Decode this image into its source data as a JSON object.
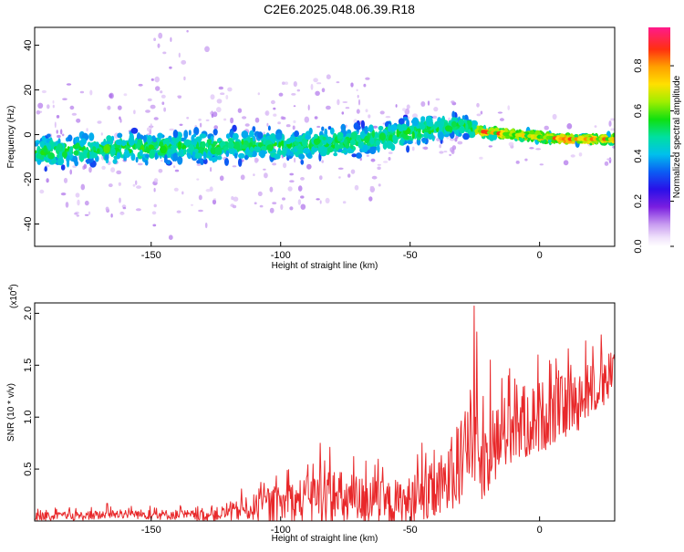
{
  "title": "C2E6.2025.048.06.39.R18",
  "colors": {
    "snr_line": "#e8282a",
    "background": "#ffffff"
  },
  "chart_data": [
    {
      "type": "heatmap",
      "name": "spectrogram",
      "xlabel": "Height of straight line (km)",
      "ylabel": "Frequency (Hz)",
      "xlim": [
        -195,
        29
      ],
      "ylim": [
        -50,
        48
      ],
      "x_ticks": [
        -150,
        -100,
        -50,
        0
      ],
      "x_tick_labels": [
        "-150",
        "-100",
        "-50",
        "0"
      ],
      "y_ticks": [
        -40,
        -20,
        0,
        20,
        40
      ],
      "y_tick_labels": [
        "-40",
        "-20",
        "0",
        "20",
        "40"
      ],
      "colorbar": {
        "label": "Normalized spectral amplitude",
        "range": [
          0.0,
          0.97
        ],
        "ticks": [
          0.0,
          0.2,
          0.4,
          0.6,
          0.8
        ],
        "tick_labels": [
          "0.0",
          "0.2",
          "0.4",
          "0.6",
          "0.8"
        ],
        "colormap": "rainbow (violet to red)"
      },
      "ridge": {
        "x": [
          -195,
          -180,
          -160,
          -140,
          -120,
          -100,
          -80,
          -60,
          -40,
          -30,
          -25,
          -20,
          -10,
          0,
          10,
          20,
          29
        ],
        "y": [
          -8,
          -7,
          -6,
          -6,
          -5,
          -5,
          -4,
          -1,
          3,
          4,
          2,
          1,
          0,
          -1,
          -2,
          -2,
          -2
        ]
      },
      "grid": false,
      "legend": "none"
    },
    {
      "type": "line",
      "name": "snr",
      "xlabel": "Height of straight line (km)",
      "ylabel": "SNR (10 * v/v)",
      "multiplier_label": "(x10",
      "multiplier_exponent": "4",
      "multiplier_close": ")",
      "xlim": [
        -195,
        29
      ],
      "ylim": [
        0,
        2.1
      ],
      "x_ticks": [
        -150,
        -100,
        -50,
        0
      ],
      "x_tick_labels": [
        "-150",
        "-100",
        "-50",
        "0"
      ],
      "y_ticks": [
        0.5,
        1.0,
        1.5,
        2.0
      ],
      "y_tick_labels": [
        "0.5",
        "1.0",
        "1.5",
        "2.0"
      ],
      "series": [
        {
          "trend": {
            "x": [
              -195,
              -175,
              -160,
              -150,
              -140,
              -130,
              -120,
              -110,
              -100,
              -90,
              -85,
              -80,
              -70,
              -60,
              -50,
              -45,
              -40,
              -35,
              -30,
              -27,
              -25,
              -23,
              -20,
              -15,
              -10,
              -5,
              0,
              5,
              10,
              15,
              20,
              25,
              29
            ],
            "y": [
              0.04,
              0.05,
              0.07,
              0.06,
              0.06,
              0.05,
              0.08,
              0.13,
              0.16,
              0.2,
              0.24,
              0.2,
              0.19,
              0.16,
              0.17,
              0.22,
              0.28,
              0.38,
              0.6,
              0.75,
              0.7,
              0.55,
              0.65,
              0.8,
              0.9,
              0.95,
              1.0,
              1.05,
              1.1,
              1.15,
              1.25,
              1.35,
              1.42
            ]
          },
          "spread": {
            "x": [
              -195,
              -130,
              -120,
              -100,
              -80,
              -60,
              -40,
              -30,
              -25,
              0,
              29
            ],
            "y": [
              0.04,
              0.05,
              0.08,
              0.18,
              0.3,
              0.22,
              0.3,
              0.4,
              0.4,
              0.35,
              0.22
            ]
          },
          "peaks": [
            {
              "x": -25.3,
              "y": 2.07
            },
            {
              "x": -24.2,
              "y": 1.82
            },
            {
              "x": -83,
              "y": 0.58
            },
            {
              "x": -167,
              "y": 0.17
            },
            {
              "x": -19,
              "y": 1.55
            },
            {
              "x": -12,
              "y": 1.4
            },
            {
              "x": 12,
              "y": 1.5
            },
            {
              "x": 24,
              "y": 1.6
            }
          ],
          "samples": 900
        }
      ],
      "grid": false,
      "legend": "none"
    }
  ]
}
